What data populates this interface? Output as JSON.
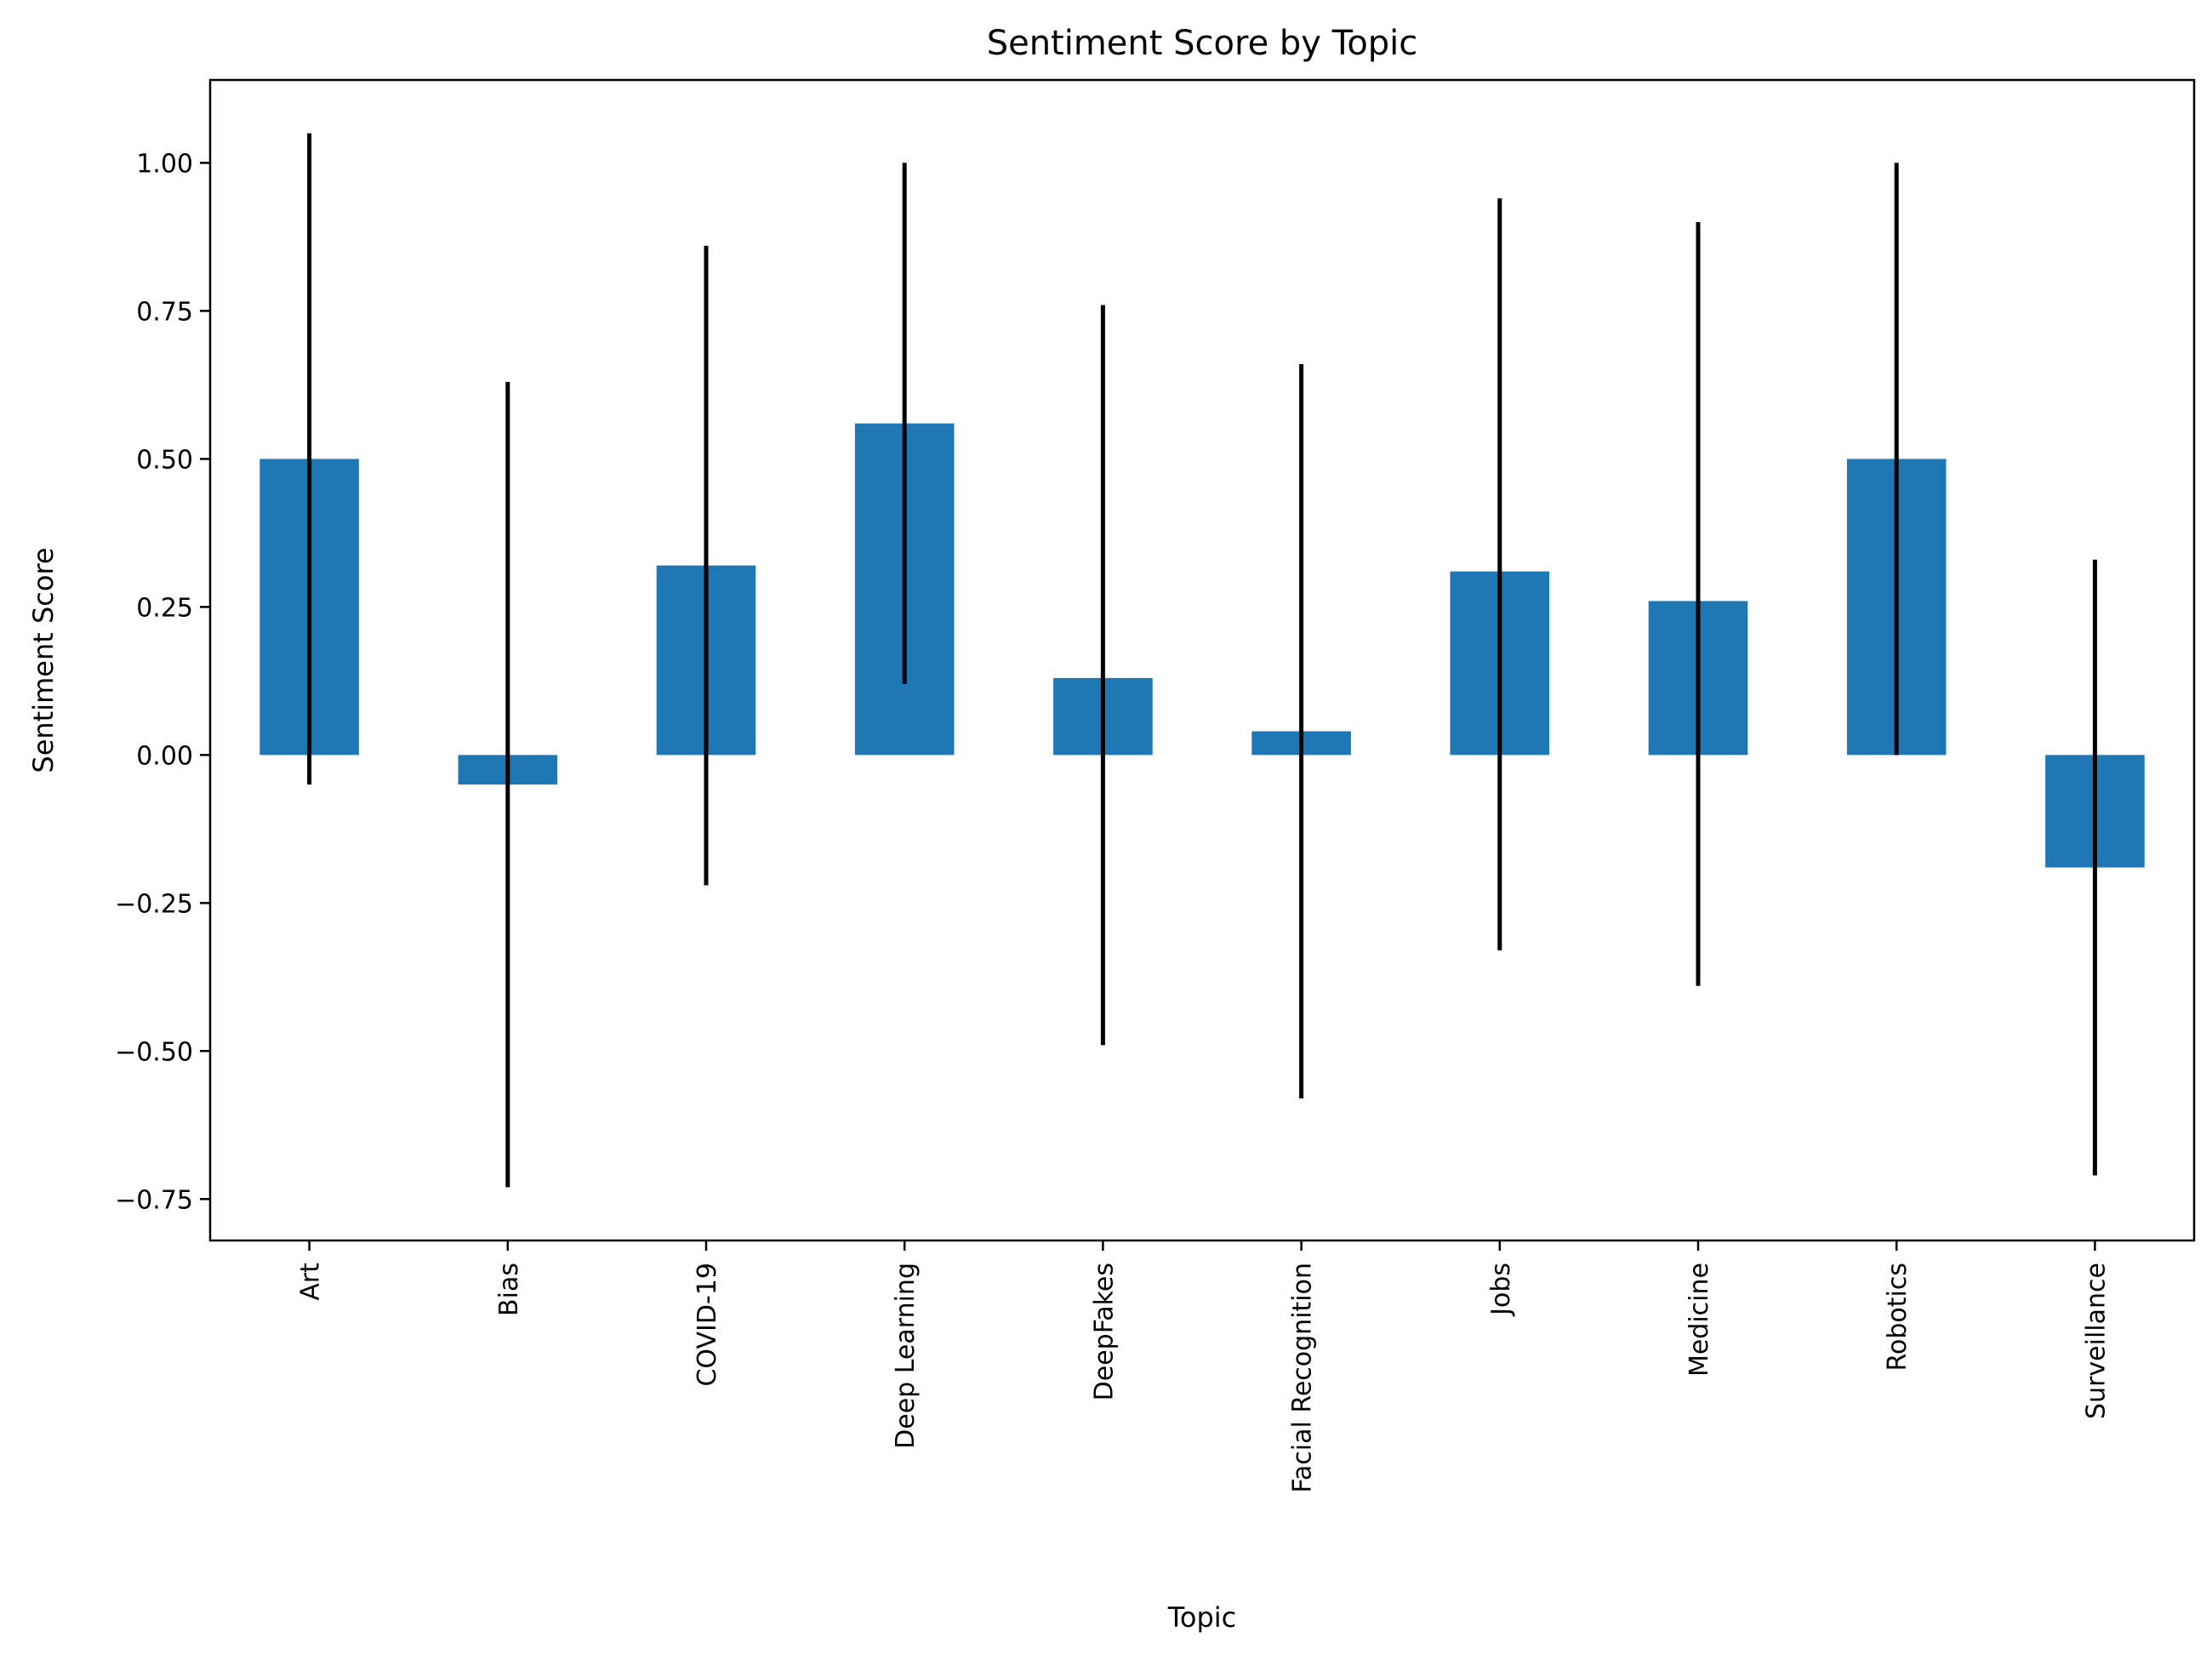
{
  "chart_data": {
    "type": "bar",
    "title": "Sentiment Score by Topic",
    "xlabel": "Topic",
    "ylabel": "Sentiment Score",
    "categories": [
      "Art",
      "Bias",
      "COVID-19",
      "Deep Learning",
      "DeepFakes",
      "Facial Recognition",
      "Jobs",
      "Medicine",
      "Robotics",
      "Surveillance"
    ],
    "values": [
      0.5,
      -0.05,
      0.32,
      0.56,
      0.13,
      0.04,
      0.31,
      0.26,
      0.5,
      -0.19
    ],
    "error_low": [
      -0.05,
      -0.73,
      -0.22,
      0.12,
      -0.49,
      -0.58,
      -0.33,
      -0.39,
      0.0,
      -0.71
    ],
    "error_high": [
      1.05,
      0.63,
      0.86,
      1.0,
      0.76,
      0.66,
      0.94,
      0.9,
      1.0,
      0.33
    ],
    "ylim": [
      -0.82,
      1.14
    ],
    "yticks": [
      -0.75,
      -0.5,
      -0.25,
      0.0,
      0.25,
      0.5,
      0.75,
      1.0
    ],
    "ytick_labels": [
      "−0.75",
      "−0.50",
      "−0.25",
      "0.00",
      "0.25",
      "0.50",
      "0.75",
      "1.00"
    ],
    "grid": false,
    "colors": {
      "bar": "#1f77b4",
      "errorbar": "#000000",
      "axis": "#000000"
    }
  }
}
